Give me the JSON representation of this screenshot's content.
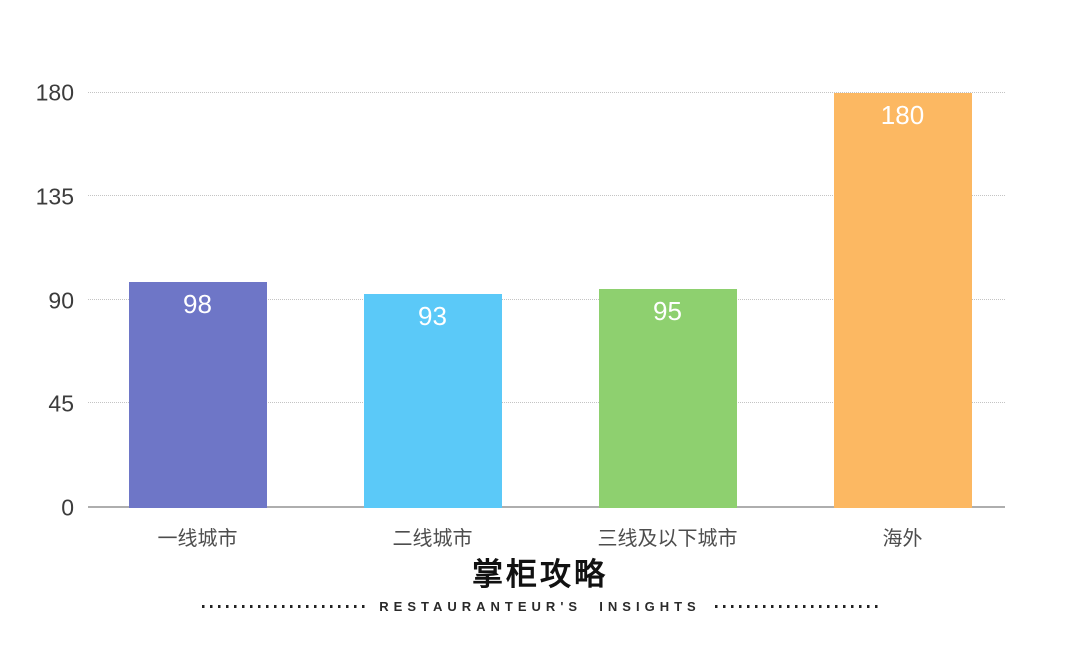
{
  "chart_data": {
    "type": "bar",
    "categories": [
      "一线城市",
      "二线城市",
      "三线及以下城市",
      "海外"
    ],
    "values": [
      98,
      93,
      95,
      180
    ],
    "bar_colors": [
      "#6e76c7",
      "#5bc9f8",
      "#8ed06f",
      "#fcb862"
    ],
    "value_labels": [
      "98",
      "93",
      "95",
      "180"
    ],
    "value_label_color": "#ffffff",
    "title": "",
    "xlabel": "",
    "ylabel": "",
    "ylim": [
      0,
      180
    ],
    "yticks": [
      0,
      45,
      90,
      135,
      180
    ],
    "grid": "horizontal-dotted",
    "legend": "none",
    "background": "#ffffff"
  },
  "footer": {
    "brand_cn": "掌柜攻略",
    "brand_en": "RESTAURANTEUR'S  INSIGHTS"
  }
}
